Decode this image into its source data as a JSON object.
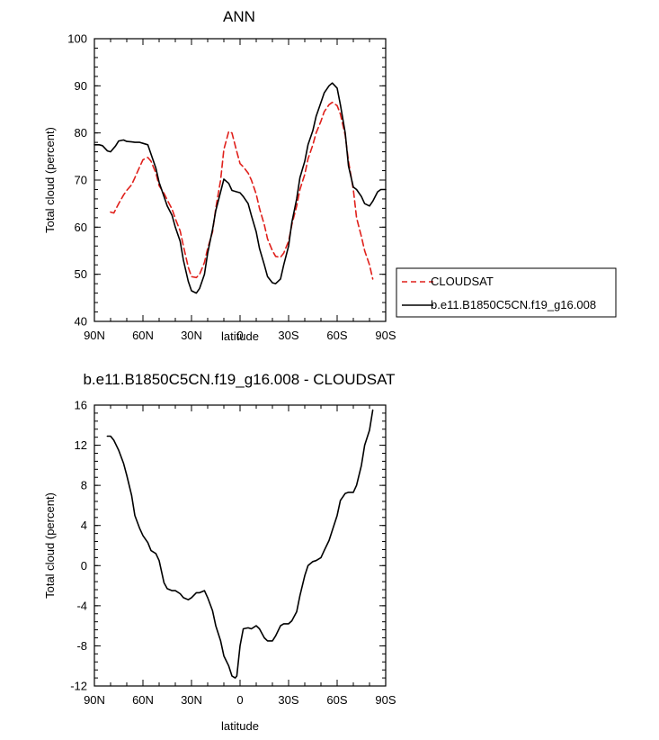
{
  "chart_data": [
    {
      "type": "line",
      "title": "ANN",
      "xlabel": "latitude",
      "ylabel": "Total cloud (percent)",
      "xlim": [
        90,
        -90
      ],
      "ylim": [
        40,
        100
      ],
      "xticks": [
        90,
        60,
        30,
        0,
        -30,
        -60,
        -90
      ],
      "xticklabels": [
        "90N",
        "60N",
        "30N",
        "0",
        "30S",
        "60S",
        "90S"
      ],
      "yticks": [
        40,
        50,
        60,
        70,
        80,
        90,
        100
      ],
      "yticklabels": [
        "40",
        "50",
        "60",
        "70",
        "80",
        "90",
        "100"
      ],
      "grid": false,
      "legend": {
        "position": "right",
        "entries": [
          "CLOUDSAT",
          "b.e11.B1850C5CN.f19_g16.008"
        ]
      },
      "series": [
        {
          "name": "CLOUDSAT",
          "color": "#e0201b",
          "dash": "dashed",
          "x": [
            80,
            78,
            75,
            72,
            70,
            67,
            65,
            62,
            60,
            57,
            55,
            52,
            50,
            47,
            45,
            42,
            40,
            37,
            35,
            32,
            30,
            27,
            25,
            22,
            20,
            17,
            15,
            12,
            10,
            7,
            5,
            2,
            0,
            -2,
            -5,
            -7,
            -10,
            -12,
            -15,
            -17,
            -20,
            -22,
            -25,
            -27,
            -30,
            -32,
            -35,
            -37,
            -40,
            -42,
            -45,
            -47,
            -50,
            -52,
            -55,
            -57,
            -60,
            -62,
            -65,
            -67,
            -70,
            -72,
            -75,
            -77,
            -80,
            -82
          ],
          "y": [
            63.2,
            63.0,
            65.0,
            66.8,
            67.8,
            69.0,
            70.5,
            72.8,
            74.3,
            74.8,
            74.0,
            71.5,
            68.8,
            67.2,
            65.8,
            63.8,
            61.8,
            59.2,
            56.0,
            51.5,
            49.5,
            49.3,
            50.0,
            52.5,
            55.5,
            59.0,
            64.0,
            70.0,
            76.5,
            80.3,
            80.0,
            76.0,
            73.5,
            72.8,
            71.5,
            70.0,
            67.0,
            64.0,
            60.5,
            57.5,
            55.0,
            53.8,
            53.6,
            54.5,
            57.0,
            60.5,
            64.5,
            68.0,
            71.2,
            74.5,
            77.5,
            80.0,
            82.5,
            84.5,
            86.0,
            86.5,
            85.8,
            84.0,
            79.5,
            74.0,
            68.0,
            62.0,
            58.0,
            55.0,
            52.0,
            49.0
          ]
        },
        {
          "name": "b.e11.B1850C5CN.f19_g16.008",
          "color": "#000000",
          "dash": "solid",
          "x": [
            90,
            87,
            85,
            82,
            80,
            77,
            75,
            72,
            70,
            67,
            65,
            62,
            60,
            57,
            55,
            52,
            50,
            47,
            45,
            42,
            40,
            37,
            35,
            32,
            30,
            27,
            25,
            22,
            20,
            17,
            15,
            12,
            10,
            7,
            5,
            2,
            0,
            -2,
            -5,
            -7,
            -10,
            -12,
            -15,
            -17,
            -20,
            -22,
            -25,
            -27,
            -30,
            -32,
            -35,
            -37,
            -40,
            -42,
            -45,
            -47,
            -50,
            -52,
            -55,
            -57,
            -60,
            -62,
            -65,
            -67,
            -70,
            -72,
            -75,
            -77,
            -80,
            -82,
            -85,
            -87,
            -90
          ],
          "y": [
            77.5,
            77.5,
            77.3,
            76.2,
            76.0,
            77.2,
            78.3,
            78.5,
            78.2,
            78.1,
            78.0,
            78.0,
            77.8,
            77.5,
            75.5,
            72.5,
            69.5,
            66.5,
            64.5,
            62.5,
            60.0,
            57.0,
            53.0,
            48.5,
            46.5,
            46.0,
            47.0,
            50.0,
            54.5,
            59.5,
            63.5,
            67.5,
            70.2,
            69.3,
            67.8,
            67.5,
            67.3,
            66.5,
            65.0,
            62.5,
            59.0,
            55.5,
            52.0,
            49.5,
            48.2,
            48.0,
            49.0,
            52.0,
            56.0,
            61.0,
            66.0,
            70.5,
            74.0,
            77.5,
            80.5,
            83.5,
            86.5,
            88.5,
            90.0,
            90.6,
            89.5,
            86.0,
            80.0,
            73.0,
            68.5,
            68.0,
            66.5,
            65.0,
            64.5,
            65.5,
            67.5,
            68.0,
            68.0
          ]
        }
      ]
    },
    {
      "type": "line",
      "title": "b.e11.B1850C5CN.f19_g16.008 - CLOUDSAT",
      "xlabel": "latitude",
      "ylabel": "Total cloud (percent)",
      "xlim": [
        90,
        -90
      ],
      "ylim": [
        -12,
        16
      ],
      "xticks": [
        90,
        60,
        30,
        0,
        -30,
        -60,
        -90
      ],
      "xticklabels": [
        "90N",
        "60N",
        "30N",
        "0",
        "30S",
        "60S",
        "90S"
      ],
      "yticks": [
        -12,
        -8,
        -4,
        0,
        4,
        8,
        12,
        16
      ],
      "yticklabels": [
        "-12",
        "-8",
        "-4",
        "0",
        "4",
        "8",
        "12",
        "16"
      ],
      "grid": false,
      "series": [
        {
          "color": "#000000",
          "dash": "solid",
          "x": [
            82,
            80,
            78,
            75,
            72,
            70,
            67,
            65,
            62,
            60,
            57,
            55,
            52,
            50,
            47,
            45,
            42,
            40,
            37,
            35,
            32,
            30,
            27,
            25,
            22,
            20,
            17,
            15,
            12,
            10,
            7,
            5,
            3,
            2,
            0,
            -2,
            -5,
            -7,
            -10,
            -12,
            -15,
            -17,
            -20,
            -22,
            -25,
            -27,
            -30,
            -32,
            -35,
            -37,
            -40,
            -42,
            -45,
            -47,
            -50,
            -52,
            -55,
            -57,
            -60,
            -62,
            -65,
            -67,
            -70,
            -72,
            -75,
            -77,
            -80,
            -82
          ],
          "y": [
            12.9,
            12.9,
            12.5,
            11.5,
            10.2,
            9.0,
            7.0,
            5.0,
            3.7,
            3.0,
            2.3,
            1.5,
            1.2,
            0.5,
            -1.7,
            -2.3,
            -2.5,
            -2.5,
            -2.8,
            -3.2,
            -3.4,
            -3.2,
            -2.7,
            -2.7,
            -2.5,
            -3.2,
            -4.5,
            -6.0,
            -7.5,
            -9.0,
            -10.0,
            -11.0,
            -11.2,
            -11.0,
            -8.0,
            -6.3,
            -6.2,
            -6.3,
            -6.0,
            -6.3,
            -7.2,
            -7.5,
            -7.5,
            -7.0,
            -6.0,
            -5.8,
            -5.8,
            -5.5,
            -4.6,
            -3.0,
            -1.0,
            0.0,
            0.4,
            0.5,
            0.8,
            1.5,
            2.5,
            3.5,
            5.0,
            6.5,
            7.2,
            7.3,
            7.3,
            8.0,
            10.0,
            12.0,
            13.5,
            15.5
          ]
        }
      ]
    }
  ]
}
